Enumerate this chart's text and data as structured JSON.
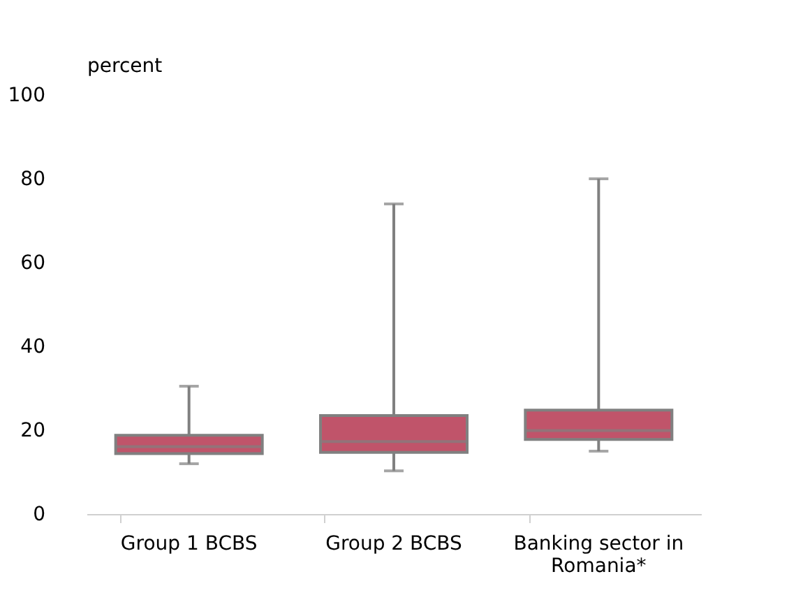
{
  "chart_data": {
    "type": "box",
    "ylabel": "percent",
    "categories": [
      "Group 1 BCBS",
      "Group 2 BCBS",
      "Banking sector in Romania*"
    ],
    "boxes": [
      {
        "low": 12,
        "q1": 14.4,
        "median": 16.1,
        "q3": 18.8,
        "high": 30.5
      },
      {
        "low": 10.3,
        "q1": 14.7,
        "median": 17.3,
        "q3": 23.5,
        "high": 74
      },
      {
        "low": 15,
        "q1": 17.8,
        "median": 19.9,
        "q3": 24.8,
        "high": 80
      }
    ],
    "colors": [
      "#c0546a",
      "#c0546a",
      "#c0546a"
    ],
    "ylim": [
      0,
      100
    ],
    "yticks": [
      0,
      20,
      40,
      60,
      80,
      100
    ],
    "grid": false
  }
}
